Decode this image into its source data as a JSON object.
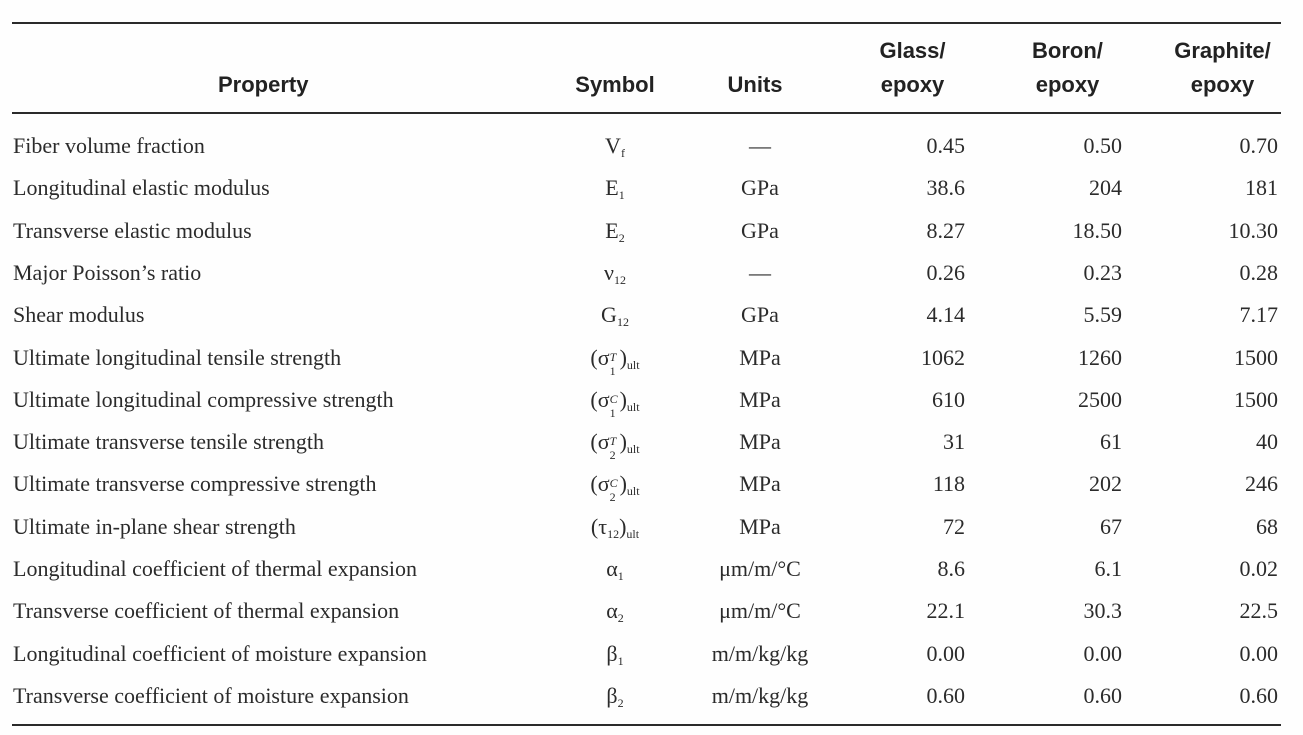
{
  "headers": {
    "property": "Property",
    "symbol": "Symbol",
    "units": "Units",
    "glass_line1": "Glass/",
    "glass_line2": "epoxy",
    "boron_line1": "Boron/",
    "boron_line2": "epoxy",
    "graphite_line1": "Graphite/",
    "graphite_line2": "epoxy"
  },
  "rows": [
    {
      "property": "Fiber volume fraction",
      "sym_base": "V",
      "sym_sub": "f",
      "units": "—",
      "glass": "0.45",
      "boron": "0.50",
      "graphite": "0.70"
    },
    {
      "property": "Longitudinal elastic modulus",
      "sym_base": "E",
      "sym_sub": "1",
      "units": "GPa",
      "glass": "38.6",
      "boron": "204",
      "graphite": "181"
    },
    {
      "property": "Transverse elastic modulus",
      "sym_base": "E",
      "sym_sub": "2",
      "units": "GPa",
      "glass": "8.27",
      "boron": "18.50",
      "graphite": "10.30"
    },
    {
      "property": "Major Poisson’s ratio",
      "sym_base": "ν",
      "sym_sub": "12",
      "units": "—",
      "glass": "0.26",
      "boron": "0.23",
      "graphite": "0.28"
    },
    {
      "property": "Shear modulus",
      "sym_base": "G",
      "sym_sub": "12",
      "units": "GPa",
      "glass": "4.14",
      "boron": "5.59",
      "graphite": "7.17"
    },
    {
      "property": "Ultimate longitudinal tensile strength",
      "sym_base": "σ",
      "sym_sup": "T",
      "sym_sub": "1",
      "sym_outer_sub": "ult",
      "units": "MPa",
      "glass": "1062",
      "boron": "1260",
      "graphite": "1500"
    },
    {
      "property": "Ultimate longitudinal compressive strength",
      "sym_base": "σ",
      "sym_sup": "C",
      "sym_sub": "1",
      "sym_outer_sub": "ult",
      "units": "MPa",
      "glass": "610",
      "boron": "2500",
      "graphite": "1500"
    },
    {
      "property": "Ultimate transverse tensile strength",
      "sym_base": "σ",
      "sym_sup": "T",
      "sym_sub": "2",
      "sym_outer_sub": "ult",
      "units": "MPa",
      "glass": "31",
      "boron": "61",
      "graphite": "40"
    },
    {
      "property": "Ultimate transverse compressive strength",
      "sym_base": "σ",
      "sym_sup": "C",
      "sym_sub": "2",
      "sym_outer_sub": "ult",
      "units": "MPa",
      "glass": "118",
      "boron": "202",
      "graphite": "246"
    },
    {
      "property": "Ultimate in-plane shear strength",
      "sym_base": "τ",
      "sym_sub": "12",
      "sym_outer_sub": "ult",
      "units": "MPa",
      "glass": "72",
      "boron": "67",
      "graphite": "68"
    },
    {
      "property": "Longitudinal coefficient of thermal expansion",
      "sym_base": "α",
      "sym_sub": "1",
      "units": "μm/m/°C",
      "glass": "8.6",
      "boron": "6.1",
      "graphite": "0.02"
    },
    {
      "property": "Transverse coefficient of thermal expansion",
      "sym_base": "α",
      "sym_sub": "2",
      "units": "μm/m/°C",
      "glass": "22.1",
      "boron": "30.3",
      "graphite": "22.5"
    },
    {
      "property": "Longitudinal coefficient of moisture expansion",
      "sym_base": "β",
      "sym_sub": "1",
      "units": "m/m/kg/kg",
      "glass": "0.00",
      "boron": "0.00",
      "graphite": "0.00"
    },
    {
      "property": "Transverse coefficient of moisture expansion",
      "sym_base": "β",
      "sym_sub": "2",
      "units": "m/m/kg/kg",
      "glass": "0.60",
      "boron": "0.60",
      "graphite": "0.60"
    }
  ]
}
